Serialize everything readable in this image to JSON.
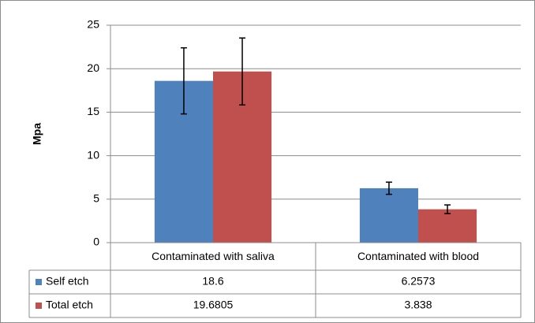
{
  "chart_data": {
    "type": "bar",
    "ylabel": "Mpa",
    "categories": [
      "Contaminated with saliva",
      "Contaminated with blood"
    ],
    "series": [
      {
        "name": "Self etch",
        "color": "#4f81bd",
        "values": [
          18.6,
          6.2573
        ],
        "errors": [
          3.8,
          0.7
        ]
      },
      {
        "name": "Total etch",
        "color": "#c0504d",
        "values": [
          19.6805,
          3.838
        ],
        "errors": [
          3.85,
          0.5
        ]
      }
    ],
    "ylim": [
      0,
      25
    ],
    "yticks": [
      0,
      5,
      10,
      15,
      20,
      25
    ],
    "grid": true,
    "data_table": true
  }
}
